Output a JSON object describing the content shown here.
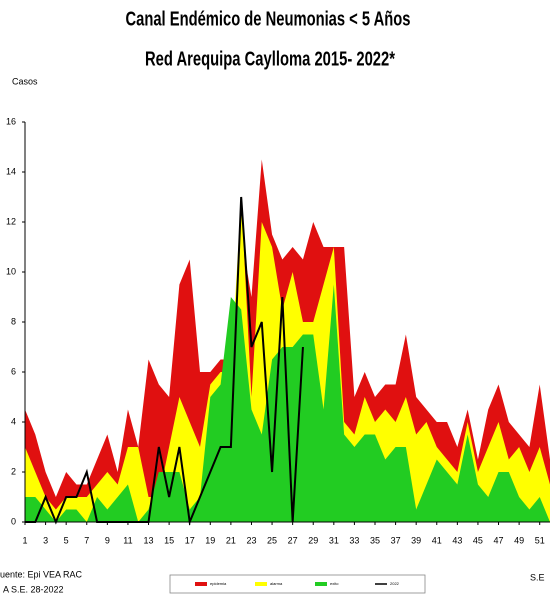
{
  "chart_data": {
    "type": "area",
    "title": "Canal Endémico de Neumonias < 5 Años",
    "subtitle": "Red Arequipa Caylloma 2015- 2022*",
    "y_label": "Casos",
    "x_label": "S.E",
    "source": "uente: Epi VEA RAC",
    "note": "A S.E. 28-2022",
    "x": [
      1,
      2,
      3,
      4,
      5,
      6,
      7,
      8,
      9,
      10,
      11,
      12,
      13,
      14,
      15,
      16,
      17,
      18,
      19,
      20,
      21,
      22,
      23,
      24,
      25,
      26,
      27,
      28,
      29,
      30,
      31,
      32,
      33,
      34,
      35,
      36,
      37,
      38,
      39,
      40,
      41,
      42,
      43,
      44,
      45,
      46,
      47,
      48,
      49,
      50,
      51,
      52
    ],
    "xlim": [
      1,
      52
    ],
    "xticks": [
      1,
      3,
      5,
      7,
      9,
      11,
      13,
      15,
      17,
      19,
      21,
      23,
      25,
      27,
      29,
      31,
      33,
      35,
      37,
      39,
      41,
      43,
      45,
      47,
      49,
      51
    ],
    "ylim": [
      0,
      16
    ],
    "yticks": [
      0,
      2,
      4,
      6,
      8,
      10,
      12,
      14,
      16
    ],
    "series": [
      {
        "name": "epidemia",
        "color": "#e01010",
        "kind": "area",
        "values": [
          4.5,
          3.5,
          2,
          1,
          2,
          1.5,
          1.5,
          2.5,
          3.5,
          2,
          4.5,
          3,
          6.5,
          5.5,
          5,
          9.5,
          10.5,
          6,
          6,
          6.5,
          6.5,
          11.5,
          9,
          14.5,
          11.5,
          10.5,
          11,
          10.5,
          12,
          11,
          11,
          11,
          5,
          6,
          5,
          5.5,
          5.5,
          7.5,
          5,
          4.5,
          4,
          4,
          3,
          4.5,
          2.5,
          4.5,
          5.5,
          4,
          3.5,
          3,
          5.5,
          2.5
        ]
      },
      {
        "name": "alarma",
        "color": "#ffff00",
        "kind": "area",
        "values": [
          3,
          2,
          1,
          0.5,
          1,
          1,
          1,
          1.5,
          2,
          1.5,
          3,
          3,
          1,
          1,
          3,
          5,
          4,
          3,
          5.5,
          6,
          6,
          13,
          5,
          12,
          11,
          8.5,
          10,
          8,
          8,
          9.5,
          11,
          4,
          3.5,
          5,
          4,
          4.5,
          4,
          5,
          3.5,
          4,
          3,
          2.5,
          2,
          4,
          2,
          3,
          4,
          2.5,
          3,
          2,
          3,
          1.5
        ]
      },
      {
        "name": "exito",
        "color": "#22cc22",
        "kind": "area",
        "values": [
          1,
          1,
          0.5,
          0,
          0.5,
          0.5,
          0,
          1,
          0.5,
          1,
          1.5,
          0,
          0.5,
          2,
          2,
          2,
          0.5,
          1,
          5,
          5.5,
          9,
          8.5,
          4.5,
          3.5,
          6.5,
          7,
          7,
          7.5,
          7.5,
          4.5,
          9.5,
          3.5,
          3,
          3.5,
          3.5,
          2.5,
          3,
          3,
          0.5,
          1.5,
          2.5,
          2,
          1.5,
          3.5,
          1.5,
          1,
          2,
          2,
          1,
          0.5,
          1,
          0
        ]
      },
      {
        "name": "2022",
        "color": "#000000",
        "kind": "line",
        "values": [
          0,
          0,
          1,
          0,
          1,
          1,
          2,
          0,
          0,
          0,
          0,
          0,
          0,
          3,
          1,
          3,
          0,
          1,
          2,
          3,
          3,
          13,
          7,
          8,
          2,
          9,
          0,
          7,
          null,
          null,
          null,
          null,
          null,
          null,
          null,
          null,
          null,
          null,
          null,
          null,
          null,
          null,
          null,
          null,
          null,
          null,
          null,
          null,
          null,
          null,
          null,
          null
        ]
      }
    ]
  }
}
